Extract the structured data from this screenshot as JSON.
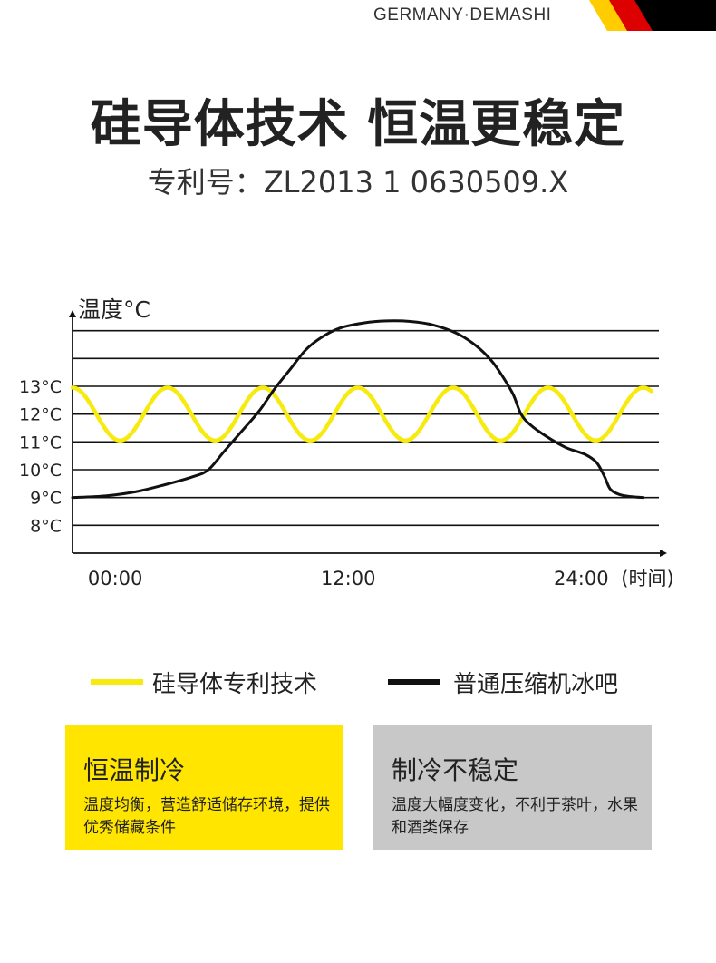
{
  "brand": {
    "name": "GERMANY·DEMASHI",
    "flag_colors": [
      "#000000",
      "#dd0000",
      "#ffcc00"
    ]
  },
  "headline": {
    "title": "硅导体技术 恒温更稳定",
    "subtitle": "专利号：ZL2013 1 0630509.X"
  },
  "chart_data": {
    "type": "line",
    "y_axis_label": "温度°C",
    "x_axis_label": "(时间)",
    "y_ticks": [
      {
        "label": "13°C",
        "value": 13
      },
      {
        "label": "12°C",
        "value": 12
      },
      {
        "label": "11°C",
        "value": 11
      },
      {
        "label": "10°C",
        "value": 10
      },
      {
        "label": "9°C",
        "value": 9
      },
      {
        "label": "8°C",
        "value": 8
      }
    ],
    "x_ticks": [
      {
        "label": "00:00",
        "value": 0
      },
      {
        "label": "12:00",
        "value": 12
      },
      {
        "label": "24:00",
        "value": 24
      }
    ],
    "xlim": [
      -2.2,
      28
    ],
    "ylim": [
      7,
      16
    ],
    "gridlines": [
      8,
      9,
      10,
      11,
      12,
      13,
      14,
      15
    ],
    "series": [
      {
        "name": "硅导体专利技术",
        "color": "#f7ea0f",
        "shape": "sine",
        "oscillation": {
          "center": 12,
          "amplitude": 0.95,
          "period_hours": 4.9,
          "x_start": -2.2,
          "x_end": 27.6
        }
      },
      {
        "name": "普通压缩机冰吧",
        "color": "#111111",
        "points": [
          [
            -2.2,
            9.0
          ],
          [
            -0.5,
            9.06
          ],
          [
            1.0,
            9.2
          ],
          [
            2.5,
            9.45
          ],
          [
            4.0,
            9.75
          ],
          [
            4.8,
            10.0
          ],
          [
            5.6,
            10.65
          ],
          [
            6.6,
            11.45
          ],
          [
            7.4,
            12.1
          ],
          [
            8.2,
            12.9
          ],
          [
            9.0,
            13.6
          ],
          [
            9.8,
            14.3
          ],
          [
            10.6,
            14.75
          ],
          [
            11.6,
            15.1
          ],
          [
            12.8,
            15.28
          ],
          [
            14.0,
            15.35
          ],
          [
            15.2,
            15.33
          ],
          [
            16.4,
            15.2
          ],
          [
            17.6,
            14.9
          ],
          [
            18.6,
            14.45
          ],
          [
            19.4,
            13.9
          ],
          [
            20.0,
            13.3
          ],
          [
            20.5,
            12.7
          ],
          [
            20.9,
            12.0
          ],
          [
            21.4,
            11.6
          ],
          [
            22.2,
            11.2
          ],
          [
            23.2,
            10.8
          ],
          [
            24.2,
            10.55
          ],
          [
            24.8,
            10.25
          ],
          [
            25.2,
            9.75
          ],
          [
            25.5,
            9.3
          ],
          [
            26.0,
            9.1
          ],
          [
            26.6,
            9.03
          ],
          [
            27.2,
            9.0
          ]
        ]
      }
    ]
  },
  "cards": [
    {
      "title": "恒温制冷",
      "text": "温度均衡，营造舒适储存环境，提供优秀储藏条件",
      "bg": "#ffe500"
    },
    {
      "title": "制冷不稳定",
      "text": "温度大幅度变化，不利于茶叶，水果和酒类保存",
      "bg": "#c8c8c8"
    }
  ]
}
